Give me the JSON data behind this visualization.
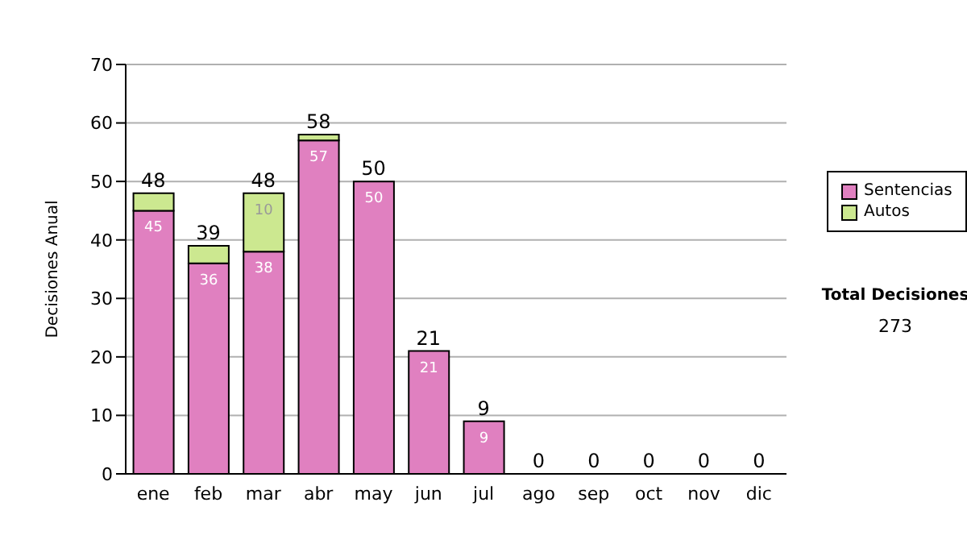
{
  "chart_data": {
    "type": "bar",
    "stacked": true,
    "ylabel": "Decisiones Anual",
    "categories": [
      "ene",
      "feb",
      "mar",
      "abr",
      "may",
      "jun",
      "jul",
      "ago",
      "sep",
      "oct",
      "nov",
      "dic"
    ],
    "series": [
      {
        "name": "Sentencias",
        "color": "#e080c0",
        "values": [
          45,
          36,
          38,
          57,
          50,
          21,
          9,
          0,
          0,
          0,
          0,
          0
        ],
        "value_labels": [
          "45",
          "36",
          "38",
          "57",
          "50",
          "21",
          "9",
          null,
          null,
          null,
          null,
          null
        ]
      },
      {
        "name": "Autos",
        "color": "#cce890",
        "values": [
          3,
          3,
          10,
          1,
          0,
          0,
          0,
          0,
          0,
          0,
          0,
          0
        ],
        "value_labels": [
          null,
          null,
          "10",
          null,
          null,
          null,
          null,
          null,
          null,
          null,
          null,
          null
        ]
      }
    ],
    "totals": [
      "48",
      "39",
      "48",
      "58",
      "50",
      "21",
      "9",
      "0",
      "0",
      "0",
      "0",
      "0"
    ],
    "ylim": [
      0,
      70
    ],
    "yticks": [
      0,
      10,
      20,
      30,
      40,
      50,
      60,
      70
    ],
    "grid": "y",
    "legend": "right",
    "annotations": [
      "Total Decisiones",
      "273"
    ]
  }
}
